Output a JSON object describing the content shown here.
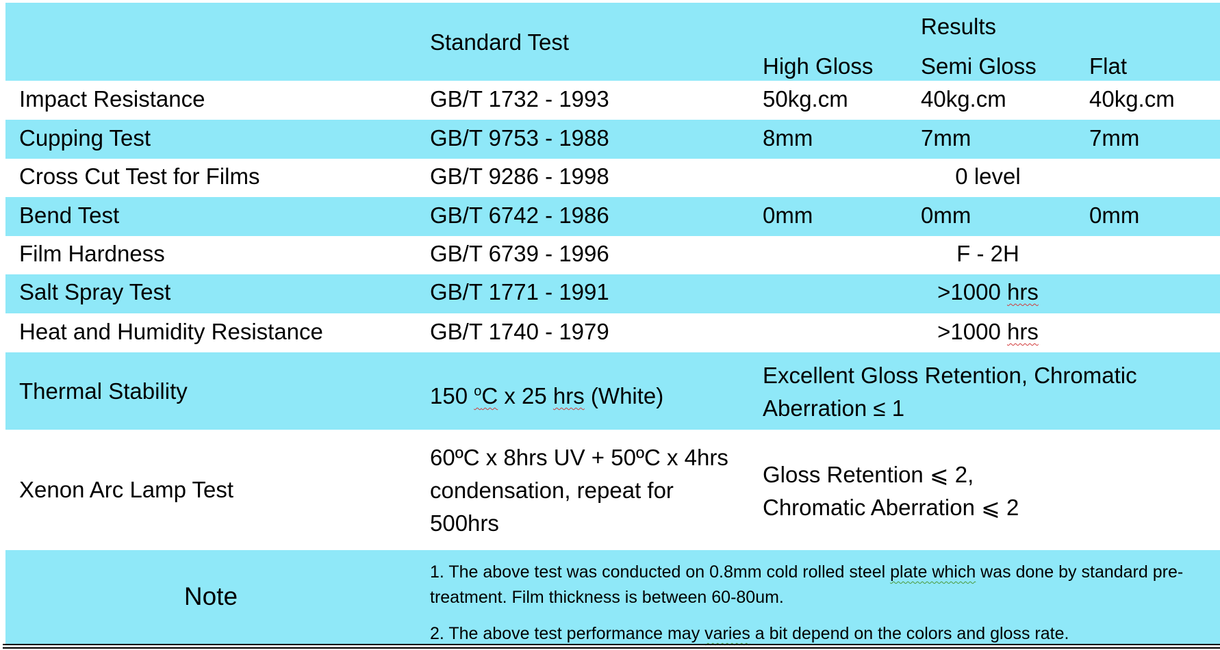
{
  "header": {
    "standard_test": "Standard Test",
    "results": "Results",
    "high_gloss": "High Gloss",
    "semi_gloss": "Semi Gloss",
    "flat": "Flat"
  },
  "rows": [
    {
      "name": "Impact Resistance",
      "standard": "GB/T 1732 - 1993",
      "high": "50kg.cm",
      "semi": "40kg.cm",
      "flat": "40kg.cm"
    },
    {
      "name": "Cupping Test",
      "standard": "GB/T 9753 - 1988",
      "high": "8mm",
      "semi": "7mm",
      "flat": "7mm"
    },
    {
      "name": "Cross Cut Test for Films",
      "standard": "GB/T 9286 - 1998",
      "merged": "0 level"
    },
    {
      "name": "Bend Test",
      "standard": "GB/T 6742 - 1986",
      "high": "0mm",
      "semi": "0mm",
      "flat": "0mm"
    },
    {
      "name": "Film Hardness",
      "standard": "GB/T 6739 - 1996",
      "merged": "F - 2H"
    },
    {
      "name": "Salt Spray Test",
      "standard": "GB/T 1771 - 1991",
      "merged_prefix": ">1000 ",
      "merged_unit": "hrs"
    },
    {
      "name": "Heat and Humidity Resistance",
      "standard": "GB/T 1740 - 1979",
      "merged_prefix": ">1000 ",
      "merged_unit": "hrs"
    },
    {
      "name": "Thermal Stability",
      "std_a": "150 ",
      "std_sup": "o",
      "std_unit": "C",
      "std_b": " x 25 ",
      "std_hrs": "hrs",
      "std_c": " (White)",
      "result": "Excellent Gloss Retention, Chromatic Aberration ≤ 1"
    },
    {
      "name": "Xenon Arc Lamp Test",
      "standard": "60ºC x 8hrs UV + 50ºC x 4hrs condensation, repeat for 500hrs",
      "result_line1": "Gloss Retention ⩽ 2,",
      "result_line2": "Chromatic Aberration ⩽ 2"
    }
  ],
  "note": {
    "label": "Note",
    "line1_a": "1. The above test was conducted on 0.8mm cold rolled steel ",
    "line1_b": "plate which",
    "line1_c": " was done by standard pre-treatment. Film thickness is between 60-80um.",
    "line2_a": "2. The above test performance may ",
    "line2_b": "varies",
    "line2_c": " a bit depend on the colors and gloss rate."
  },
  "colors": {
    "row_highlight": "#8fe8f8",
    "spellcheck": "#d23a3a",
    "grammar": "#4a9a3a"
  }
}
